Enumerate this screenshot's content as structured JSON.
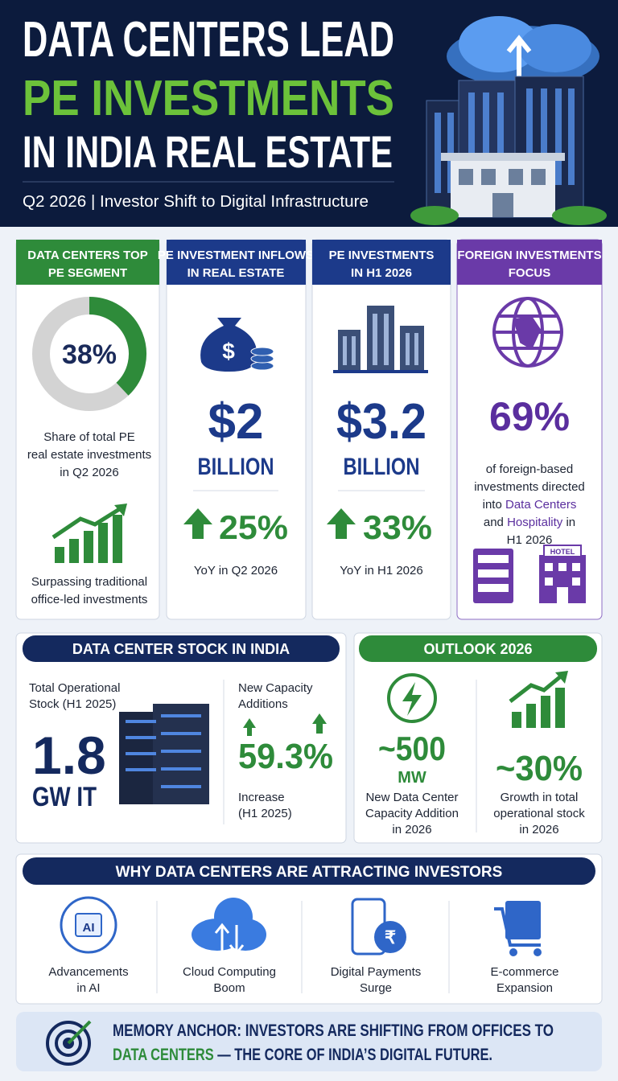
{
  "header": {
    "title_lines": [
      "DATA CENTERS LEAD",
      "PE INVESTMENTS",
      "IN INDIA REAL ESTATE"
    ],
    "subtitle": "Q2 2026 | Investor Shift to Digital Infrastructure"
  },
  "cards": [
    {
      "title_lines": [
        "DATA CENTERS TOP",
        "PE SEGMENT"
      ],
      "donut": {
        "value": 38,
        "label": "38%"
      },
      "text_lines": [
        "Share of total PE",
        "real estate investments",
        "in Q2 2026"
      ],
      "note_lines": [
        "Surpassing traditional",
        "office-led investments"
      ]
    },
    {
      "title_lines": [
        "PE INVESTMENT INFLOWS",
        "IN REAL ESTATE"
      ],
      "amount": "$2",
      "unit": "BILLION",
      "change": "25%",
      "note": "YoY in Q2 2026"
    },
    {
      "title_lines": [
        "PE INVESTMENTS",
        "IN H1 2026"
      ],
      "amount": "$3.2",
      "unit": "BILLION",
      "change": "33%",
      "note": "YoY in H1 2026"
    },
    {
      "title_lines": [
        "FOREIGN INVESTMENTS",
        "FOCUS"
      ],
      "amount": "69%",
      "text_parts": [
        "of foreign-based",
        "investments directed",
        "into ",
        "Data Centers",
        "and ",
        "Hospitality",
        " in",
        "H1 2026"
      ],
      "icon_label": "HOTEL"
    }
  ],
  "stock": {
    "title": "DATA CENTER STOCK IN INDIA",
    "left_label_lines": [
      "Total Operational",
      "Stock (H1 2025)"
    ],
    "value": "1.8",
    "unit": "GW IT",
    "right_label_lines": [
      "New Capacity",
      "Additions"
    ],
    "change": "59.3%",
    "change_note_lines": [
      "Increase",
      "(H1 2025)"
    ]
  },
  "outlook": {
    "title": "OUTLOOK 2026",
    "items": [
      {
        "value": "~500",
        "unit": "MW",
        "lines": [
          "New Data Center",
          "Capacity Addition",
          "in 2026"
        ]
      },
      {
        "value": "~30%",
        "lines": [
          "Growth in total",
          "operational stock",
          "in 2026"
        ]
      }
    ]
  },
  "why": {
    "title": "WHY DATA CENTERS ARE ATTRACTING INVESTORS",
    "icon_label": "AI",
    "items": [
      [
        "Advancements",
        "in AI"
      ],
      [
        "Cloud Computing",
        "Boom"
      ],
      [
        "Digital Payments",
        "Surge"
      ],
      [
        "E-commerce",
        "Expansion"
      ]
    ]
  },
  "anchor": {
    "line1": "MEMORY ANCHOR: INVESTORS ARE SHIFTING FROM OFFICES TO",
    "highlight": "DATA CENTERS",
    "rest": " — THE CORE OF INDIA’S DIGITAL FUTURE."
  }
}
